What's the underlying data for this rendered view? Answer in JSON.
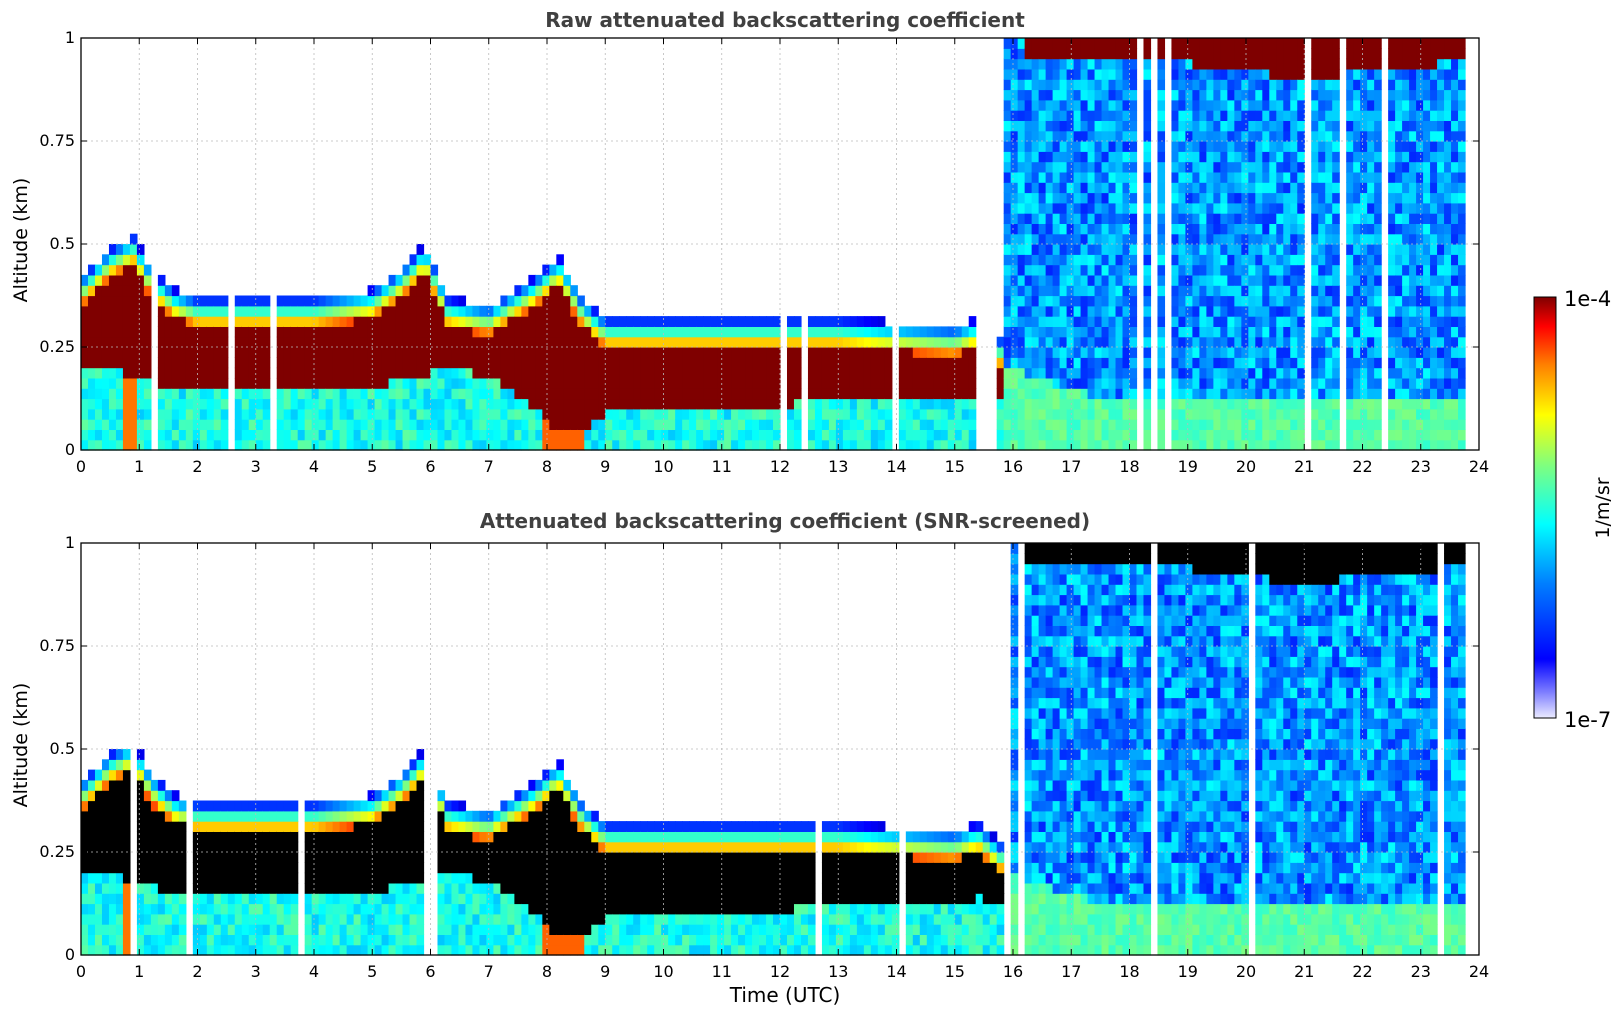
{
  "figure": {
    "xlabel": "Time (UTC)",
    "colorbar": {
      "label": "1/m/sr",
      "max_label": "1e-4",
      "min_label": "1e-7",
      "scale": "log",
      "colormap": "jet"
    }
  },
  "colors": {
    "jet": [
      "#00007f",
      "#0000ff",
      "#007fff",
      "#00ffff",
      "#7fff7f",
      "#ffff00",
      "#ff7f00",
      "#ff0000",
      "#7f0000"
    ],
    "saturated_top": "#7f0000",
    "saturated_bottom": "#000000",
    "grid": "#bbbbbb",
    "title": "#404040"
  },
  "chart_data": [
    {
      "type": "heatmap",
      "title": "Raw attenuated backscattering coefficient",
      "xlabel": "",
      "ylabel": "Altitude (km)",
      "xlim": [
        0,
        24
      ],
      "ylim": [
        0,
        1
      ],
      "xticks": [
        0,
        1,
        2,
        3,
        4,
        5,
        6,
        7,
        8,
        9,
        10,
        11,
        12,
        13,
        14,
        15,
        16,
        17,
        18,
        19,
        20,
        21,
        22,
        23,
        24
      ],
      "yticks": [
        0,
        0.25,
        0.5,
        0.75,
        1
      ],
      "ytick_labels": [
        "0",
        "0.25",
        "0.5",
        "0.75",
        "1"
      ],
      "grid": true,
      "saturation_color": "dark-red",
      "profile": {
        "time": [
          0,
          0.5,
          0.9,
          1.2,
          1.6,
          2,
          3,
          4,
          5,
          5.5,
          5.9,
          6.3,
          7,
          7.8,
          8.2,
          8.6,
          9,
          10,
          11,
          12,
          13,
          14,
          15,
          15.4,
          15.8,
          16.5,
          17,
          18,
          19,
          20,
          21,
          22,
          23,
          23.8
        ],
        "layer_top_km": [
          0.4,
          0.47,
          0.5,
          0.42,
          0.37,
          0.35,
          0.35,
          0.35,
          0.37,
          0.42,
          0.48,
          0.35,
          0.33,
          0.4,
          0.45,
          0.35,
          0.3,
          0.3,
          0.3,
          0.3,
          0.3,
          0.29,
          0.28,
          0.3,
          0.25,
          0.15,
          0.15,
          0.15,
          0.14,
          0.14,
          0.14,
          0.13,
          0.13,
          0.12
        ],
        "layer_bottom_km": [
          0.19,
          0.2,
          0.18,
          0.17,
          0.15,
          0.14,
          0.14,
          0.14,
          0.15,
          0.17,
          0.18,
          0.2,
          0.18,
          0.1,
          0.05,
          0.05,
          0.09,
          0.1,
          0.1,
          0.11,
          0.12,
          0.13,
          0.13,
          0.14,
          0.12,
          0.1,
          0.06,
          0.05,
          0.05,
          0.04,
          0.04,
          0.04,
          0.04,
          0.04
        ],
        "upper_cloud_base_km": [
          null,
          null,
          null,
          null,
          null,
          null,
          null,
          null,
          null,
          null,
          null,
          null,
          null,
          null,
          null,
          null,
          null,
          null,
          null,
          null,
          null,
          null,
          null,
          null,
          null,
          0.96,
          0.95,
          0.95,
          0.94,
          0.92,
          0.9,
          0.92,
          0.93,
          0.95
        ]
      }
    },
    {
      "type": "heatmap",
      "title": "Attenuated backscattering coefficient (SNR-screened)",
      "xlabel": "Time (UTC)",
      "ylabel": "Altitude (km)",
      "xlim": [
        0,
        24
      ],
      "ylim": [
        0,
        1
      ],
      "xticks": [
        0,
        1,
        2,
        3,
        4,
        5,
        6,
        7,
        8,
        9,
        10,
        11,
        12,
        13,
        14,
        15,
        16,
        17,
        18,
        19,
        20,
        21,
        22,
        23,
        24
      ],
      "yticks": [
        0,
        0.25,
        0.5,
        0.75,
        1
      ],
      "ytick_labels": [
        "0",
        "0.25",
        "0.5",
        "0.75",
        "1"
      ],
      "grid": true,
      "saturation_color": "black",
      "profile": {
        "time": [
          0,
          0.5,
          0.9,
          1.2,
          1.6,
          2,
          3,
          4,
          5,
          5.5,
          5.9,
          6.3,
          7,
          7.8,
          8.2,
          8.6,
          9,
          10,
          11,
          12,
          13,
          14,
          15,
          15.4,
          15.8,
          16.5,
          17,
          18,
          19,
          20,
          21,
          22,
          23,
          23.8
        ],
        "layer_top_km": [
          0.4,
          0.47,
          0.5,
          0.42,
          0.37,
          0.35,
          0.35,
          0.35,
          0.37,
          0.42,
          0.48,
          0.35,
          0.33,
          0.4,
          0.45,
          0.35,
          0.3,
          0.3,
          0.3,
          0.3,
          0.3,
          0.29,
          0.28,
          0.3,
          0.25,
          0.15,
          0.15,
          0.15,
          0.14,
          0.14,
          0.14,
          0.13,
          0.13,
          0.12
        ],
        "layer_bottom_km": [
          0.19,
          0.2,
          0.18,
          0.17,
          0.15,
          0.14,
          0.14,
          0.14,
          0.15,
          0.17,
          0.18,
          0.2,
          0.18,
          0.1,
          0.05,
          0.05,
          0.09,
          0.1,
          0.1,
          0.11,
          0.12,
          0.13,
          0.13,
          0.14,
          0.12,
          0.1,
          0.06,
          0.05,
          0.05,
          0.04,
          0.04,
          0.04,
          0.04,
          0.04
        ],
        "upper_cloud_base_km": [
          null,
          null,
          null,
          null,
          null,
          null,
          null,
          null,
          null,
          null,
          null,
          null,
          null,
          null,
          null,
          null,
          null,
          null,
          null,
          null,
          null,
          null,
          null,
          null,
          null,
          0.96,
          0.95,
          0.95,
          0.94,
          0.92,
          0.9,
          0.92,
          0.93,
          0.95
        ]
      }
    }
  ]
}
